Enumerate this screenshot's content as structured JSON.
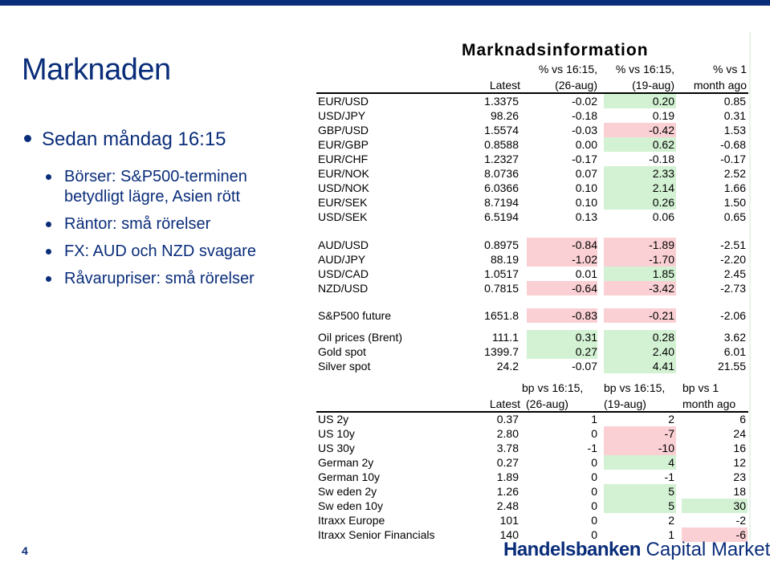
{
  "title": "Marknaden",
  "bullet_main": "Sedan måndag 16:15",
  "bullets": [
    "Börser: S&P500-terminen betydligt lägre, Asien rött",
    "Räntor: små rörelser",
    "FX: AUD och NZD svagare",
    "Råvarupriser: små rörelser"
  ],
  "page_number": "4",
  "panel_title": "Marknadsinformation",
  "pct_header": {
    "latest": "Latest",
    "c2_l1": "% vs 16:15,",
    "c2_l2": "(26-aug)",
    "c3_l1": "% vs 16:15,",
    "c3_l2": "(19-aug)",
    "c4_l1": "% vs 1",
    "c4_l2": "month ago"
  },
  "pct_rows": [
    {
      "name": "EUR/USD",
      "latest": "1.3375",
      "a": "-0.02",
      "b": "0.20",
      "c": "0.85",
      "bc": "green"
    },
    {
      "name": "USD/JPY",
      "latest": "98.26",
      "a": "-0.18",
      "b": "0.19",
      "c": "0.31"
    },
    {
      "name": "GBP/USD",
      "latest": "1.5574",
      "a": "-0.03",
      "b": "-0.42",
      "c": "1.53",
      "bc": "red"
    },
    {
      "name": "EUR/GBP",
      "latest": "0.8588",
      "a": "0.00",
      "b": "0.62",
      "c": "-0.68",
      "bc": "green"
    },
    {
      "name": "EUR/CHF",
      "latest": "1.2327",
      "a": "-0.17",
      "b": "-0.18",
      "c": "-0.17"
    },
    {
      "name": "EUR/NOK",
      "latest": "8.0736",
      "a": "0.07",
      "b": "2.33",
      "c": "2.52",
      "bc": "green"
    },
    {
      "name": "USD/NOK",
      "latest": "6.0366",
      "a": "0.10",
      "b": "2.14",
      "c": "1.66",
      "bc": "green"
    },
    {
      "name": "EUR/SEK",
      "latest": "8.7194",
      "a": "0.10",
      "b": "0.26",
      "c": "1.50",
      "bc": "green"
    },
    {
      "name": "USD/SEK",
      "latest": "6.5194",
      "a": "0.13",
      "b": "0.06",
      "c": "0.65"
    },
    {
      "name": "AUD/USD",
      "latest": "0.8975",
      "a": "-0.84",
      "b": "-1.89",
      "c": "-2.51",
      "ac": "red",
      "bc": "red"
    },
    {
      "name": "AUD/JPY",
      "latest": "88.19",
      "a": "-1.02",
      "b": "-1.70",
      "c": "-2.20",
      "ac": "red",
      "bc": "red"
    },
    {
      "name": "USD/CAD",
      "latest": "1.0517",
      "a": "0.01",
      "b": "1.85",
      "c": "2.45",
      "bc": "green"
    },
    {
      "name": "NZD/USD",
      "latest": "0.7815",
      "a": "-0.64",
      "b": "-3.42",
      "c": "-2.73",
      "ac": "red",
      "bc": "red"
    },
    {
      "name": "S&P500 future",
      "latest": "1651.8",
      "a": "-0.83",
      "b": "-0.21",
      "c": "-2.06",
      "ac": "red",
      "bc": "red"
    },
    {
      "name": "Oil prices (Brent)",
      "latest": "111.1",
      "a": "0.31",
      "b": "0.28",
      "c": "3.62",
      "ac": "green",
      "bc": "green"
    },
    {
      "name": "Gold spot",
      "latest": "1399.7",
      "a": "0.27",
      "b": "2.40",
      "c": "6.01",
      "ac": "green",
      "bc": "green"
    },
    {
      "name": "Silver spot",
      "latest": "24.2",
      "a": "-0.07",
      "b": "4.41",
      "c": "21.55",
      "bc": "green"
    }
  ],
  "bp_header": {
    "latest": "Latest",
    "c2_l1": "bp vs 16:15,",
    "c2_l2": "(26-aug)",
    "c3_l1": "bp vs 16:15,",
    "c3_l2": "(19-aug)",
    "c4_l1": "bp vs 1",
    "c4_l2": "month ago"
  },
  "bp_rows": [
    {
      "name": "US 2y",
      "latest": "0.37",
      "a": "1",
      "b": "2",
      "c": "6"
    },
    {
      "name": "US 10y",
      "latest": "2.80",
      "a": "0",
      "b": "-7",
      "c": "24",
      "bc": "red"
    },
    {
      "name": "US 30y",
      "latest": "3.78",
      "a": "-1",
      "b": "-10",
      "c": "16",
      "bc": "red"
    },
    {
      "name": "German 2y",
      "latest": "0.27",
      "a": "0",
      "b": "4",
      "c": "12",
      "bc": "green"
    },
    {
      "name": "German 10y",
      "latest": "1.89",
      "a": "0",
      "b": "-1",
      "c": "23"
    },
    {
      "name": "Sw eden 2y",
      "latest": "1.26",
      "a": "0",
      "b": "5",
      "c": "18",
      "bc": "green"
    },
    {
      "name": "Sw eden 10y",
      "latest": "2.48",
      "a": "0",
      "b": "5",
      "c": "30",
      "bc": "green",
      "cc": "green"
    },
    {
      "name": "Itraxx Europe",
      "latest": "101",
      "a": "0",
      "b": "2",
      "c": "-2"
    },
    {
      "name": "Itraxx Senior Financials",
      "latest": "140",
      "a": "0",
      "b": "1",
      "c": "-6",
      "cc": "red"
    }
  ],
  "logo_bold": "Handelsbanken",
  "logo_rest": " Capital Markets",
  "colors": {
    "brand": "#0a2d7a",
    "up": "#d3f1d3",
    "down": "#fad0d4"
  }
}
